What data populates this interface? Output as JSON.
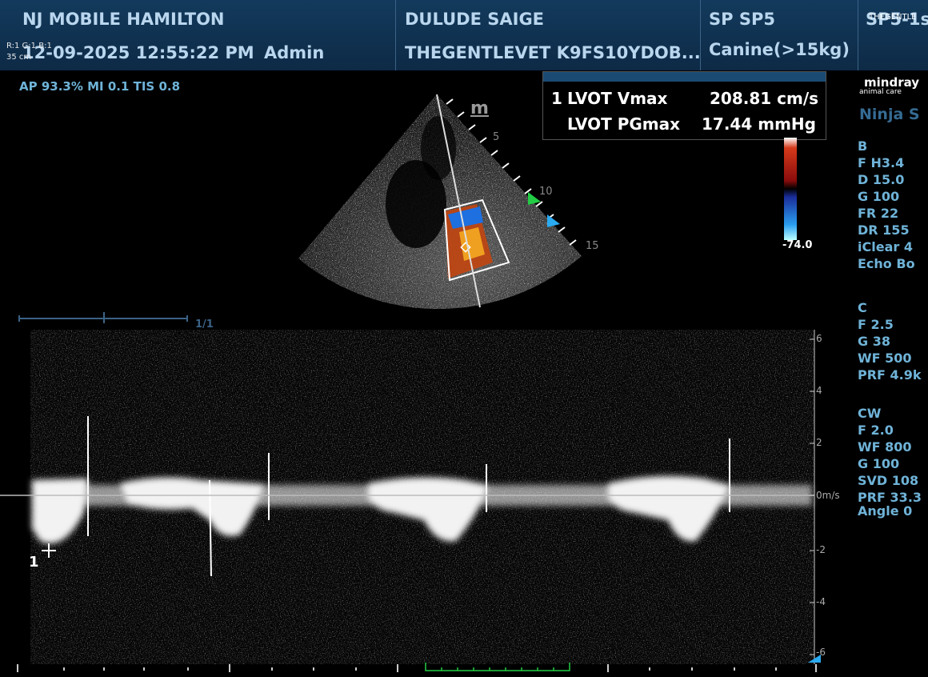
{
  "header": {
    "clinic": "NJ MOBILE HAMILTON",
    "datetime": "12-09-2025 12:55:22 PM",
    "operator": "Admin",
    "patient_name": "DULUDE SAIGE",
    "patient_id": "THEGENTLEVET K9FS10YDOB...",
    "preset": "SP SP5",
    "species": "Canine(>15kg)",
    "probe": "SP5-1s",
    "corner_tag": "THEGENTLE",
    "overlay_top": "R:1 G:1 B:1",
    "overlay_bottom": "35 cm"
  },
  "acoustic": "AP 93.3%  MI 0.1  TIS 0.8",
  "measurements": {
    "index": "1",
    "items": [
      {
        "label": "LVOT Vmax",
        "value": "208.81 cm/s"
      },
      {
        "label": "LVOT PGmax",
        "value": "17.44 mmHg"
      }
    ]
  },
  "image_markers": {
    "m_mark": "m",
    "depth_ticks": [
      "5",
      "10",
      "15"
    ],
    "color_scale_min": "-74.0",
    "frame_counter": "1/1",
    "cursor_label": "1"
  },
  "brand": {
    "name": "mindray",
    "sub": "animal care"
  },
  "exam_label": "Ninja S",
  "params": {
    "b": {
      "title": "B",
      "items": [
        "F H3.4",
        "D 15.0",
        "G 100",
        "FR 22",
        "DR 155",
        "iClear 4",
        "Echo Bo"
      ]
    },
    "c": {
      "title": "C",
      "items": [
        "F 2.5",
        "G 38",
        "WF 500",
        "PRF 4.9k"
      ]
    },
    "cw": {
      "title": "CW",
      "items": [
        "F 2.0",
        "WF 800",
        "G 100",
        "SVD 108",
        "PRF 33.3",
        "Angle 0"
      ]
    }
  },
  "velocity_scale": {
    "ticks": [
      "6",
      "4",
      "2",
      "0m/s",
      "-2",
      "-4",
      "-6"
    ]
  },
  "colors": {
    "header_bg": "#133a5c",
    "label_blue": "#6fb3d8",
    "accent_green": "#22cc44",
    "accent_cyan": "#2aaaf0"
  }
}
